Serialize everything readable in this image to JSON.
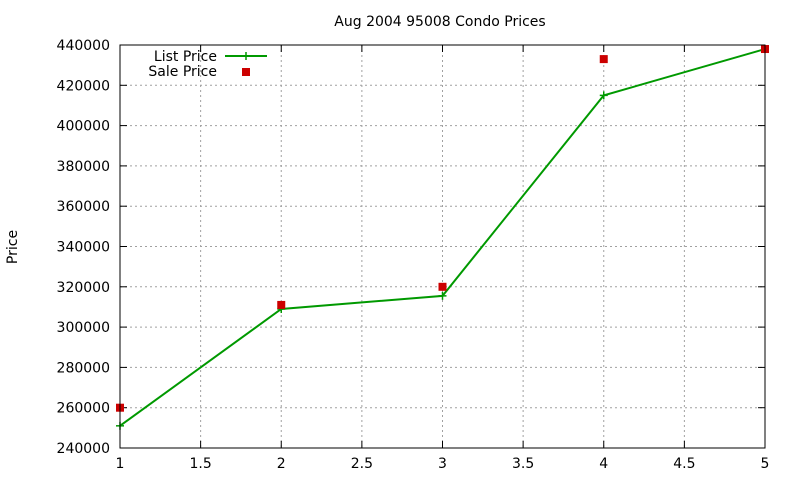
{
  "chart_data": {
    "type": "line",
    "title": "Aug 2004 95008 Condo Prices",
    "xlabel": "",
    "ylabel": "Price",
    "xlim": [
      1,
      5
    ],
    "ylim": [
      240000,
      440000
    ],
    "x_ticks": [
      "1",
      "1.5",
      "2",
      "2.5",
      "3",
      "3.5",
      "4",
      "4.5",
      "5"
    ],
    "y_ticks": [
      "240000",
      "260000",
      "280000",
      "300000",
      "320000",
      "340000",
      "360000",
      "380000",
      "400000",
      "420000",
      "440000"
    ],
    "grid": true,
    "legend_position": "top-left",
    "series": [
      {
        "name": "List Price",
        "style": "line-with-plus-markers",
        "color": "#009900",
        "x": [
          1,
          2,
          3,
          4,
          5
        ],
        "y": [
          251000,
          309000,
          315500,
          415000,
          438000
        ]
      },
      {
        "name": "Sale Price",
        "style": "square-markers",
        "color": "#cc0000",
        "x": [
          1,
          2,
          3,
          4,
          5
        ],
        "y": [
          260000,
          311000,
          320000,
          433000,
          438000
        ]
      }
    ]
  }
}
